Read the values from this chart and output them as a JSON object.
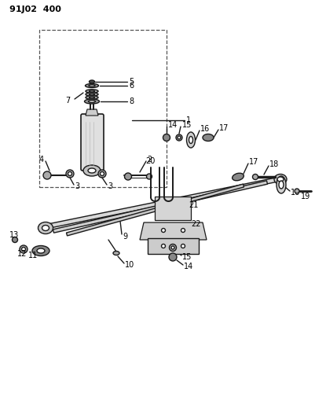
{
  "title": "91J02  400",
  "bg_color": "#ffffff",
  "line_color": "#1a1a1a",
  "fig_width": 4.02,
  "fig_height": 5.33,
  "dpi": 100
}
